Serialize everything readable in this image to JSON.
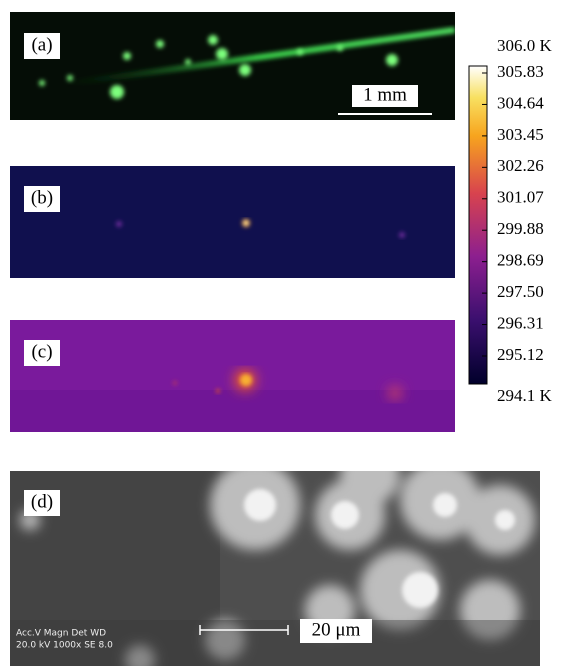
{
  "panels": [
    {
      "label": "(a)",
      "scale_bar": "1 mm"
    },
    {
      "label": "(b)"
    },
    {
      "label": "(c)"
    },
    {
      "label": "(d)",
      "scale_bar": "20 μm",
      "info_header": "Acc.V  Magn    Det  WD",
      "info_values": "20.0 kV 1000x   SE   8.0"
    }
  ],
  "colorbar": {
    "top_label": "306.0 K",
    "bottom_label": "294.1 K",
    "tick_labels": [
      "305.83",
      "304.64",
      "303.45",
      "302.26",
      "301.07",
      "299.88",
      "298.69",
      "297.50",
      "296.31",
      "295.12"
    ]
  }
}
